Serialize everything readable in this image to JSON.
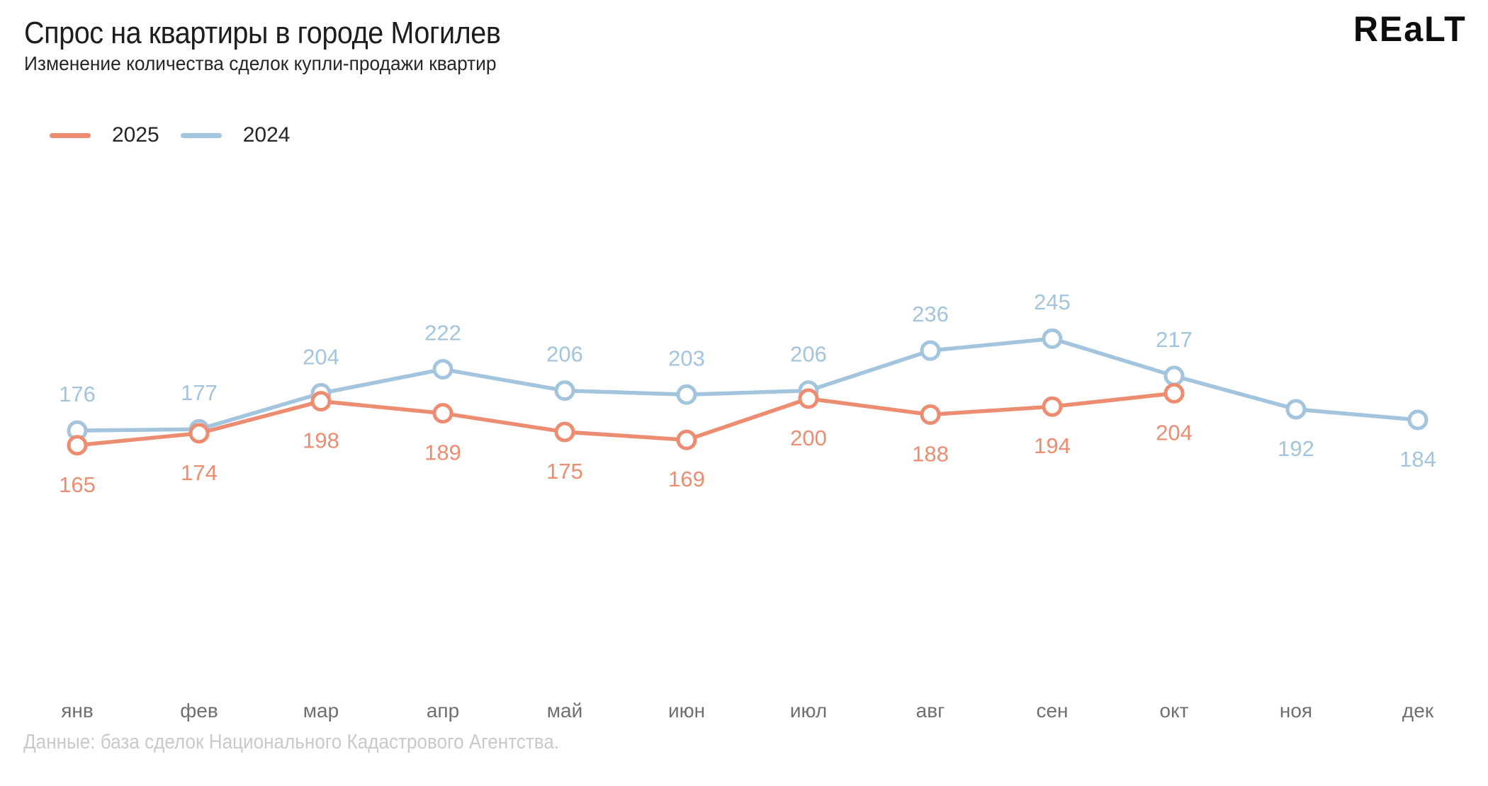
{
  "header": {
    "title": "Спрос на квартиры в городе Могилев",
    "subtitle": "Изменение количества сделок купли-продажи квартир",
    "logo": "REaLT"
  },
  "footer": {
    "source": "Данные: база сделок Национального Кадастрового Агентства."
  },
  "chart_data": {
    "type": "line",
    "title": "Спрос на квартиры в городе Могилев",
    "subtitle": "Изменение количества сделок купли-продажи квартир",
    "categories": [
      "янв",
      "фев",
      "мар",
      "апр",
      "май",
      "июн",
      "июл",
      "авг",
      "сен",
      "окт",
      "ноя",
      "дек"
    ],
    "series": [
      {
        "name": "2025",
        "color": "#EC8C71",
        "values": [
          165,
          174,
          198,
          189,
          175,
          169,
          200,
          188,
          194,
          204
        ],
        "label_position": "below"
      },
      {
        "name": "2024",
        "color": "#A3C4DD",
        "values": [
          176,
          177,
          204,
          222,
          206,
          203,
          206,
          236,
          245,
          217,
          192,
          184
        ],
        "label_position": "above",
        "labels_below_indices": [
          10,
          11
        ]
      }
    ],
    "ylim": [
      150,
      260
    ],
    "grid": false,
    "axes_visible": false,
    "marker": "open-circle",
    "legend_position": "top-left",
    "data_labels": true
  }
}
